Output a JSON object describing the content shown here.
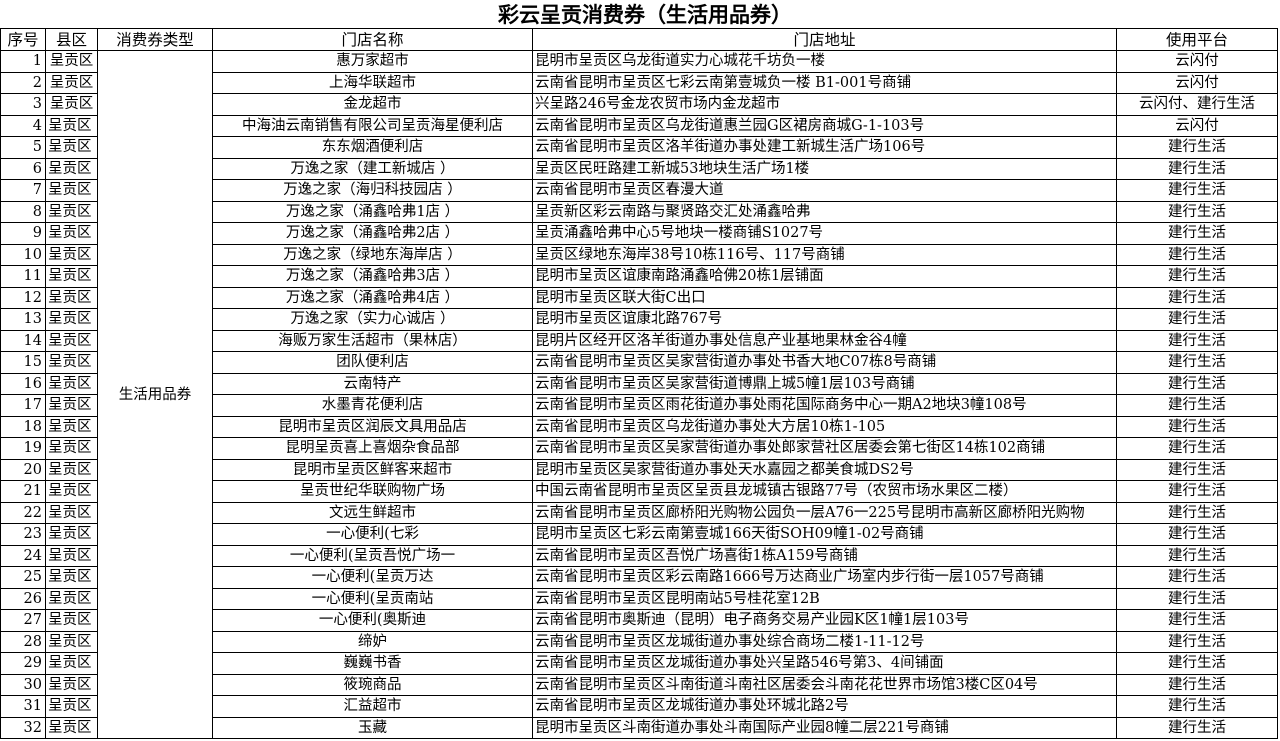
{
  "title": "彩云呈贡消费券（生活用品券）",
  "headers": [
    "序号",
    "县区",
    "消费券类型",
    "门店名称",
    "门店地址",
    "使用平台"
  ],
  "voucher_type": "生活用品券",
  "rows": [
    {
      "no": "1",
      "county": "呈贡区",
      "county_centered": true,
      "name": "惠万家超市",
      "address": "昆明市呈贡区乌龙街道实力心城花千坊负一楼",
      "platform": "云闪付"
    },
    {
      "no": "2",
      "county": "呈贡区",
      "county_centered": true,
      "name": "上海华联超市",
      "address": "云南省昆明市呈贡区七彩云南第壹城负一楼 B1-001号商铺",
      "platform": "云闪付"
    },
    {
      "no": "3",
      "county": "呈贡区",
      "county_centered": true,
      "name": "金龙超市",
      "address": "兴呈路246号金龙农贸市场内金龙超市",
      "platform": "云闪付、建行生活"
    },
    {
      "no": "4",
      "county": "呈贡区",
      "name": "中海油云南销售有限公司呈贡海星便利店",
      "address": "云南省昆明市呈贡区乌龙街道惠兰园G区裙房商城G-1-103号",
      "platform": "云闪付"
    },
    {
      "no": "5",
      "county": "呈贡区",
      "name": "东东烟酒便利店",
      "address": "云南省昆明市呈贡区洛羊街道办事处建工新城生活广场106号",
      "platform": "建行生活"
    },
    {
      "no": "6",
      "county": "呈贡区",
      "name": "万逸之家（建工新城店 ）",
      "address": "呈贡区民旺路建工新城53地块生活广场1楼",
      "platform": "建行生活"
    },
    {
      "no": "7",
      "county": "呈贡区",
      "name": "万逸之家（海归科技园店 ）",
      "address": "云南省昆明市呈贡区春漫大道",
      "platform": "建行生活"
    },
    {
      "no": "8",
      "county": "呈贡区",
      "name": "万逸之家（涌鑫哈弗1店 ）",
      "address": "呈贡新区彩云南路与聚贤路交汇处涌鑫哈弗",
      "platform": "建行生活"
    },
    {
      "no": "9",
      "county": "呈贡区",
      "name": "万逸之家（涌鑫哈弗2店 ）",
      "address": "呈贡涌鑫哈弗中心5号地块一楼商铺S1027号",
      "platform": "建行生活"
    },
    {
      "no": "10",
      "county": "呈贡区",
      "name": "万逸之家（绿地东海岸店 ）",
      "address": "呈贡区绿地东海岸38号10栋116号、117号商铺",
      "platform": "建行生活"
    },
    {
      "no": "11",
      "county": "呈贡区",
      "name": "万逸之家（涌鑫哈弗3店 ）",
      "address": "昆明市呈贡区谊康南路涌鑫哈佛20栋1层铺面",
      "platform": "建行生活"
    },
    {
      "no": "12",
      "county": "呈贡区",
      "name": "万逸之家（涌鑫哈弗4店 ）",
      "address": "昆明市呈贡区联大街C出口",
      "platform": "建行生活"
    },
    {
      "no": "13",
      "county": "呈贡区",
      "name": "万逸之家（实力心诚店 ）",
      "address": "昆明市呈贡区谊康北路767号",
      "platform": "建行生活"
    },
    {
      "no": "14",
      "county": "呈贡区",
      "name": "海贩万家生活超市（果林店）",
      "address": "昆明片区经开区洛羊街道办事处信息产业基地果林金谷4幢",
      "platform": "建行生活"
    },
    {
      "no": "15",
      "county": "呈贡区",
      "name": "团队便利店",
      "address": "云南省昆明市呈贡区吴家营街道办事处书香大地C07栋8号商铺",
      "platform": "建行生活"
    },
    {
      "no": "16",
      "county": "呈贡区",
      "name": "云南特产",
      "address": "云南省昆明市呈贡区吴家营街道博鼎上城5幢1层103号商铺",
      "platform": "建行生活"
    },
    {
      "no": "17",
      "county": "呈贡区",
      "name": "水墨青花便利店",
      "address": "云南省昆明市呈贡区雨花街道办事处雨花国际商务中心一期A2地块3幢108号",
      "platform": "建行生活"
    },
    {
      "no": "18",
      "county": "呈贡区",
      "name": "昆明市呈贡区润辰文具用品店",
      "address": "云南省昆明市呈贡区乌龙街道办事处大方居10栋1-105",
      "platform": "建行生活"
    },
    {
      "no": "19",
      "county": "呈贡区",
      "name": "昆明呈贡喜上喜烟杂食品部",
      "address": "云南省昆明市呈贡区吴家营街道办事处郎家营社区居委会第七街区14栋102商铺",
      "platform": "建行生活"
    },
    {
      "no": "20",
      "county": "呈贡区",
      "name": "昆明市呈贡区鲜客来超市",
      "address": "昆明市呈贡区吴家营街道办事处天水嘉园之都美食城DS2号",
      "platform": "建行生活"
    },
    {
      "no": "21",
      "county": "呈贡区",
      "name": "呈贡世纪华联购物广场",
      "address": "中国云南省昆明市呈贡区呈贡县龙城镇古银路77号（农贸市场水果区二楼）",
      "platform": "建行生活"
    },
    {
      "no": "22",
      "county": "呈贡区",
      "name": "文远生鲜超市",
      "address": "云南省昆明市呈贡区廊桥阳光购物公园负一层A76一225号昆明市高新区廊桥阳光购物",
      "platform": "建行生活"
    },
    {
      "no": "23",
      "county": "呈贡区",
      "name": "一心便利(七彩",
      "address": "昆明市呈贡区七彩云南第壹城166天街SOH09幢1-02号商铺",
      "platform": "建行生活"
    },
    {
      "no": "24",
      "county": "呈贡区",
      "name": "一心便利(呈贡吾悦广场一",
      "address": "云南省昆明市呈贡区吾悦广场喜街1栋A159号商铺",
      "platform": "建行生活"
    },
    {
      "no": "25",
      "county": "呈贡区",
      "name": "一心便利(呈贡万达",
      "address": "云南省昆明市呈贡区彩云南路1666号万达商业广场室内步行街一层1057号商铺",
      "platform": "建行生活"
    },
    {
      "no": "26",
      "county": "呈贡区",
      "name": "一心便利(呈贡南站",
      "address": "云南省昆明市呈贡区昆明南站5号桂花室12B",
      "platform": "建行生活"
    },
    {
      "no": "27",
      "county": "呈贡区",
      "name": "一心便利(奥斯迪",
      "address": "云南省昆明市奥斯迪（昆明）电子商务交易产业园K区1幢1层103号",
      "platform": "建行生活"
    },
    {
      "no": "28",
      "county": "呈贡区",
      "name": "缔妒",
      "address": "云南省昆明市呈贡区龙城街道办事处综合商场二楼1-11-12号",
      "platform": "建行生活"
    },
    {
      "no": "29",
      "county": "呈贡区",
      "name": "巍巍书香",
      "address": "云南省昆明市呈贡区龙城街道办事处兴呈路546号第3、4间铺面",
      "platform": "建行生活"
    },
    {
      "no": "30",
      "county": "呈贡区",
      "name": "筱琬商品",
      "address": "云南省昆明市呈贡区斗南街道斗南社区居委会斗南花花世界市场馆3楼C区04号",
      "platform": "建行生活"
    },
    {
      "no": "31",
      "county": "呈贡区",
      "name": "汇益超市",
      "address": "云南省昆明市呈贡区龙城街道办事处环城北路2号",
      "platform": "建行生活"
    },
    {
      "no": "32",
      "county": "呈贡区",
      "name": "玉藏",
      "address": "昆明市呈贡区斗南街道办事处斗南国际产业园8幢二层221号商铺",
      "platform": "建行生活"
    }
  ]
}
